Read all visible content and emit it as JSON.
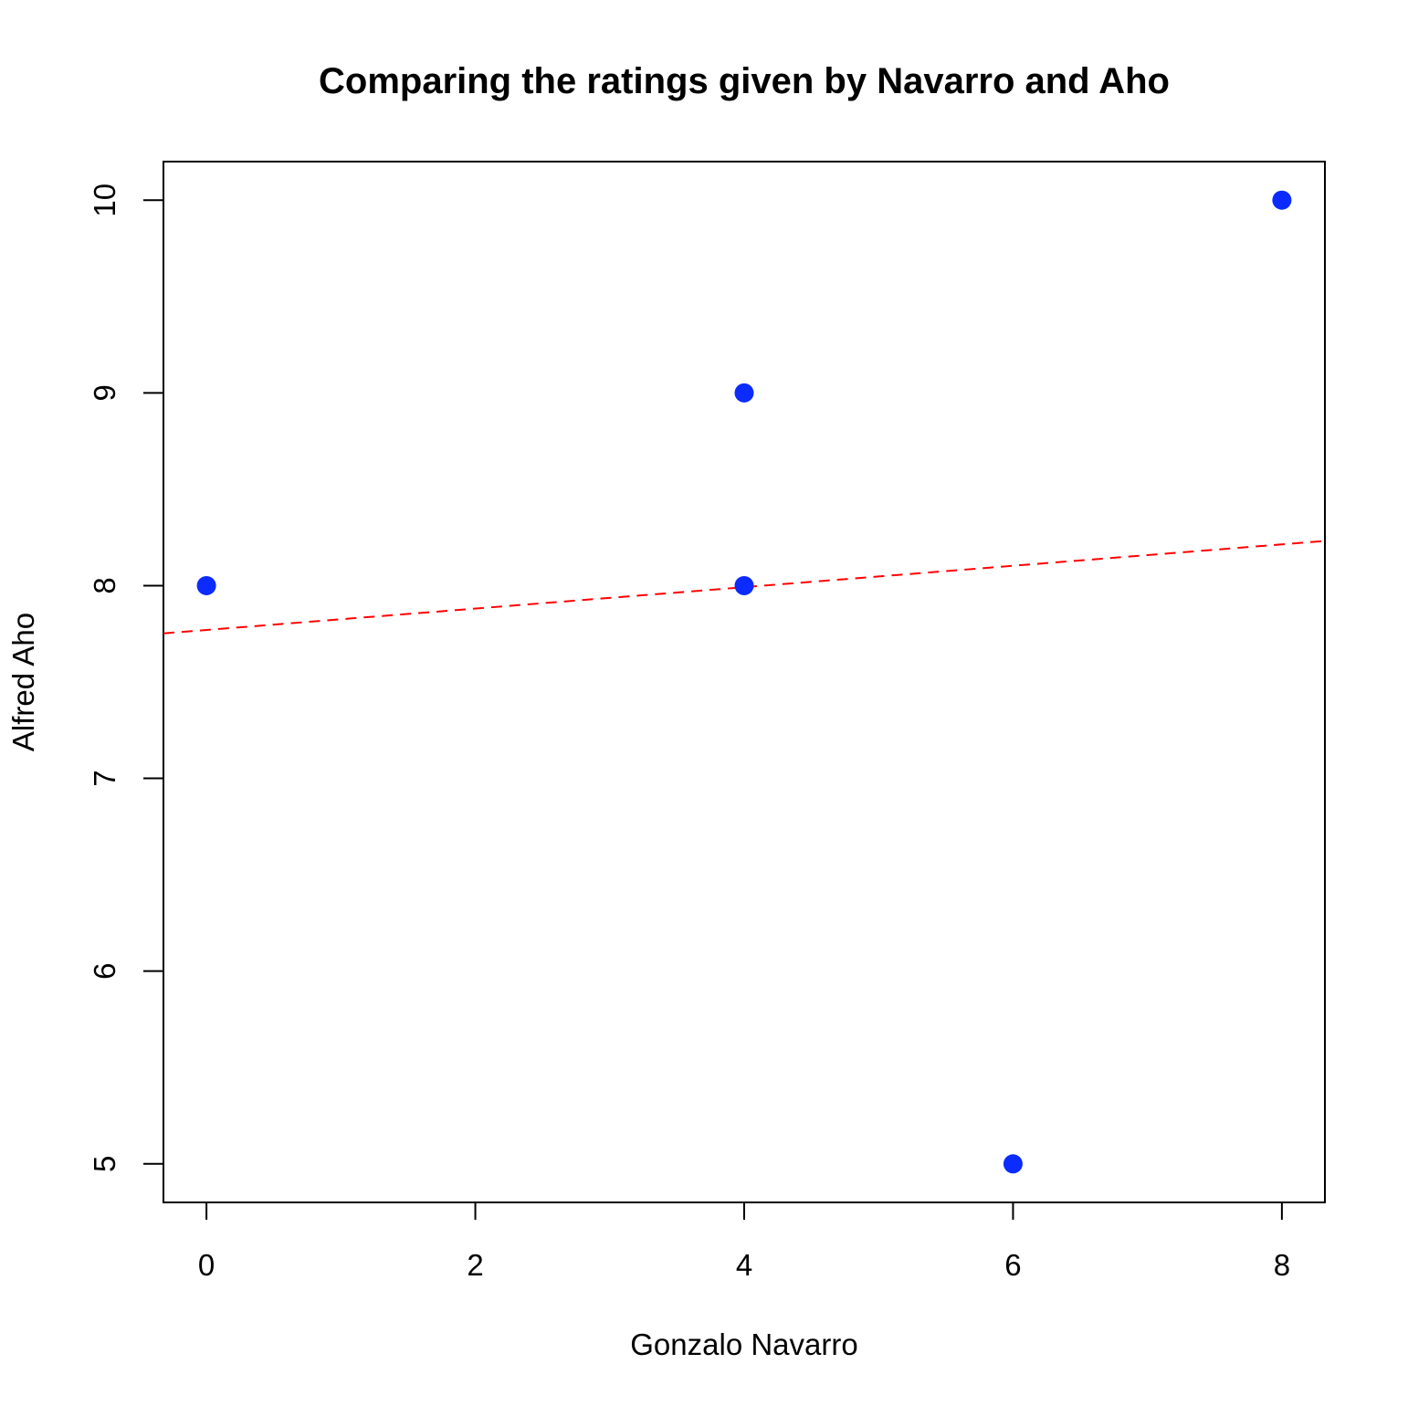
{
  "chart_data": {
    "type": "scatter",
    "title": "Comparing the ratings given by Navarro and Aho",
    "xlabel": "Gonzalo Navarro",
    "ylabel": "Alfred Aho",
    "xlim": [
      -0.32,
      8.32
    ],
    "ylim": [
      4.8,
      10.2
    ],
    "xticks": [
      0,
      2,
      4,
      6,
      8
    ],
    "yticks": [
      5,
      6,
      7,
      8,
      9,
      10
    ],
    "points": [
      {
        "x": 0,
        "y": 8
      },
      {
        "x": 4,
        "y": 9
      },
      {
        "x": 4,
        "y": 8
      },
      {
        "x": 6,
        "y": 5
      },
      {
        "x": 8,
        "y": 10
      }
    ],
    "fit_line": {
      "intercept": 7.77,
      "slope": 0.0555,
      "style": "dashed"
    },
    "grid": false,
    "colors": {
      "points": "#0b2bff",
      "fit_line": "#ff0000",
      "axes": "#000000"
    }
  }
}
